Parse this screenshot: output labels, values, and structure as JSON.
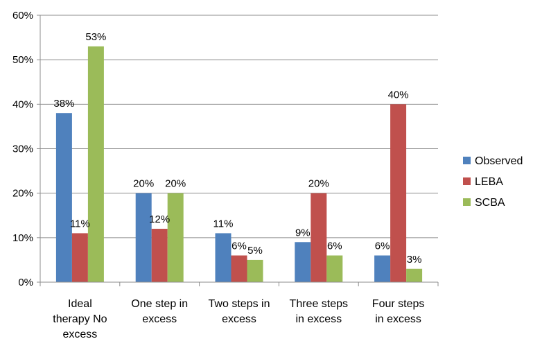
{
  "chart_data": {
    "type": "bar",
    "categories": [
      [
        "Ideal",
        "therapy No",
        "excess"
      ],
      [
        "One step in",
        "excess"
      ],
      [
        "Two steps in",
        "excess"
      ],
      [
        "Three steps",
        "in excess"
      ],
      [
        "Four steps",
        "in excess"
      ]
    ],
    "series": [
      {
        "name": "Observed",
        "color": "#4F81BD",
        "values": [
          38,
          20,
          11,
          9,
          6
        ],
        "labels": [
          "38%",
          "20%",
          "11%",
          "9%",
          "6%"
        ]
      },
      {
        "name": "LEBA",
        "color": "#C0504D",
        "values": [
          11,
          12,
          6,
          20,
          40
        ],
        "labels": [
          "11%",
          "12%",
          "6%",
          "20%",
          "40%"
        ]
      },
      {
        "name": "SCBA",
        "color": "#9BBB59",
        "values": [
          53,
          20,
          5,
          6,
          3
        ],
        "labels": [
          "53%",
          "20%",
          "5%",
          "6%",
          "3%"
        ]
      }
    ],
    "y_ticks": [
      "0%",
      "10%",
      "20%",
      "30%",
      "40%",
      "50%",
      "60%"
    ],
    "ylim": [
      0,
      60
    ],
    "grid": true,
    "legend_position": "right"
  }
}
